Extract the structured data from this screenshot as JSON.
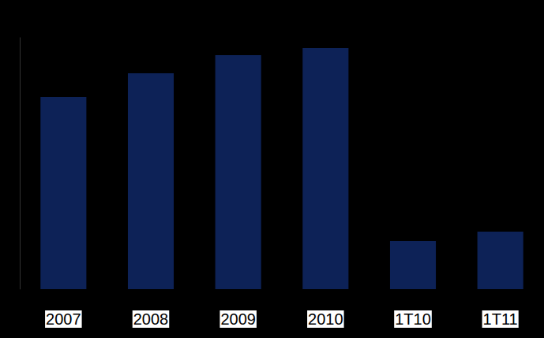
{
  "chart_data": {
    "type": "bar",
    "categories": [
      "2007",
      "2008",
      "2009",
      "2010",
      "1T10",
      "1T11"
    ],
    "values": [
      244,
      274,
      297,
      306,
      61,
      73
    ],
    "color": "#0d2257",
    "ylim": [
      0,
      320
    ],
    "yticks": [],
    "tick_labels": "x",
    "grid": false
  }
}
